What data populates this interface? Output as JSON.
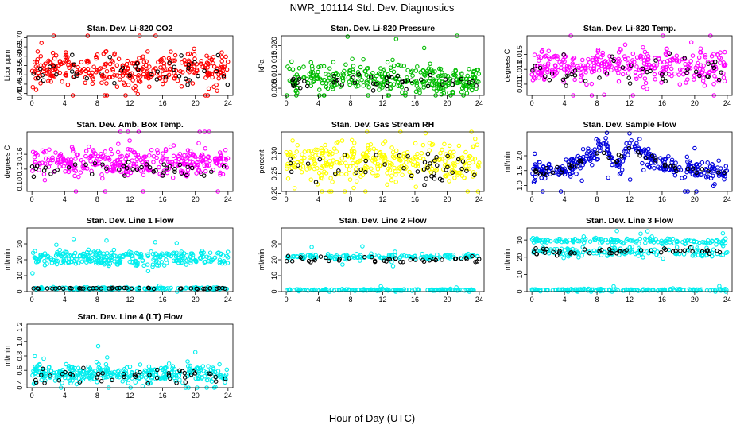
{
  "figure": {
    "title": "NWR_101114  Std. Dev. Diagnostics",
    "xlabel": "Hour of Day (UTC)"
  },
  "colors": {
    "black": "#000000"
  },
  "chart_data": [
    {
      "id": "co2",
      "type": "scatter",
      "title": "Stan. Dev. Li-820 CO2",
      "ylabel": "Licor ppm",
      "color": "#ff0000",
      "xlim": [
        -0.6,
        24.6
      ],
      "ylim": [
        0.39,
        0.71
      ],
      "xticks": [
        0,
        4,
        8,
        12,
        16,
        20,
        24
      ],
      "yticks": [
        "0.40",
        "0.45",
        "0.50",
        "0.55",
        "0.60",
        "0.65",
        "0.70"
      ],
      "profile": [
        [
          0,
          0.53
        ],
        [
          24,
          0.53
        ]
      ],
      "spread": 0.045,
      "black_profile": [
        [
          0,
          0.52
        ],
        [
          24,
          0.52
        ]
      ],
      "black_spread": 0.04
    },
    {
      "id": "pressure",
      "type": "scatter",
      "title": "Stan. Dev. Li-820 Pressure",
      "ylabel": "kPa",
      "color": "#00bb00",
      "xlim": [
        -0.6,
        24.6
      ],
      "ylim": [
        0.0025,
        0.0235
      ],
      "xticks": [
        0,
        4,
        8,
        12,
        16,
        20,
        24
      ],
      "yticks": [
        "0.005",
        "0.010",
        "0.015",
        "0.020"
      ],
      "profile": [
        [
          0,
          0.008
        ],
        [
          6,
          0.0095
        ],
        [
          12,
          0.0085
        ],
        [
          18,
          0.008
        ],
        [
          24,
          0.0075
        ]
      ],
      "spread": 0.0025,
      "black_profile": [
        [
          0,
          0.007
        ],
        [
          24,
          0.0075
        ]
      ],
      "black_spread": 0.0015
    },
    {
      "id": "temp",
      "type": "scatter",
      "title": "Stan. Dev. Li-820 Temp.",
      "ylabel": "degrees C",
      "color": "#ff00ff",
      "xlim": [
        -0.6,
        24.6
      ],
      "ylim": [
        0.0095,
        0.0175
      ],
      "xticks": [
        0,
        4,
        8,
        12,
        16,
        20,
        24
      ],
      "yticks": [
        "0.011",
        "0.013",
        "0.015"
      ],
      "profile": [
        [
          0,
          0.0135
        ],
        [
          24,
          0.0135
        ]
      ],
      "spread": 0.0012,
      "black_profile": [
        [
          0,
          0.013
        ],
        [
          24,
          0.013
        ]
      ],
      "black_spread": 0.001
    },
    {
      "id": "ambtemp",
      "type": "scatter",
      "title": "Stan. Dev. Amb. Box Temp.",
      "ylabel": "degrees C",
      "color": "#ff00ff",
      "xlim": [
        -0.6,
        24.6
      ],
      "ylim": [
        0.085,
        0.205
      ],
      "xticks": [
        0,
        4,
        8,
        12,
        16,
        20,
        24
      ],
      "yticks": [
        "0.10",
        "0.13",
        "0.16"
      ],
      "profile": [
        [
          0,
          0.145
        ],
        [
          24,
          0.145
        ]
      ],
      "spread": 0.015,
      "black_profile": [
        [
          0,
          0.13
        ],
        [
          24,
          0.13
        ]
      ],
      "black_spread": 0.008
    },
    {
      "id": "rh",
      "type": "scatter",
      "title": "Stan. Dev. Gas Stream RH",
      "ylabel": "percent",
      "color": "#ffff00",
      "xlim": [
        -0.6,
        24.6
      ],
      "ylim": [
        0.205,
        0.355
      ],
      "xticks": [
        0,
        4,
        8,
        12,
        16,
        20,
        24
      ],
      "yticks": [
        "0.20",
        "0.25",
        "0.30"
      ],
      "profile": [
        [
          0,
          0.28
        ],
        [
          24,
          0.28
        ]
      ],
      "spread": 0.025,
      "black_profile": [
        [
          0,
          0.27
        ],
        [
          24,
          0.27
        ]
      ],
      "black_spread": 0.02
    },
    {
      "id": "sampleflow",
      "type": "scatter",
      "title": "Stan. Dev. Sample Flow",
      "ylabel": "ml/min",
      "color": "#0000dd",
      "xlim": [
        -0.6,
        24.6
      ],
      "ylim": [
        0.8,
        2.8
      ],
      "xticks": [
        0,
        4,
        8,
        12,
        16,
        20,
        24
      ],
      "yticks": [
        "1.0",
        "1.5",
        "2.0"
      ],
      "profile": [
        [
          0,
          1.45
        ],
        [
          4,
          1.5
        ],
        [
          7,
          2.0
        ],
        [
          9,
          2.3
        ],
        [
          10,
          1.8
        ],
        [
          11,
          1.7
        ],
        [
          12,
          2.5
        ],
        [
          13,
          2.3
        ],
        [
          15,
          1.8
        ],
        [
          17,
          1.6
        ],
        [
          20,
          1.5
        ],
        [
          24,
          1.5
        ]
      ],
      "spread": 0.15,
      "black_profile": [
        [
          0,
          1.45
        ],
        [
          4,
          1.5
        ],
        [
          7,
          1.9
        ],
        [
          9,
          2.1
        ],
        [
          10,
          1.75
        ],
        [
          12,
          2.3
        ],
        [
          14,
          2.0
        ],
        [
          17,
          1.6
        ],
        [
          20,
          1.5
        ],
        [
          24,
          1.45
        ]
      ],
      "black_spread": 0.07
    },
    {
      "id": "line1",
      "type": "scatter",
      "title": "Stan. Dev. Line 1 Flow",
      "ylabel": "ml/min",
      "color": "#00eeee",
      "xlim": [
        -0.6,
        24.6
      ],
      "ylim": [
        0,
        40
      ],
      "xticks": [
        0,
        4,
        8,
        12,
        16,
        20,
        24
      ],
      "yticks": [
        "0",
        "10",
        "20",
        "30"
      ],
      "bands": [
        {
          "profile": [
            [
              0,
              19
            ],
            [
              24,
              19
            ]
          ],
          "spread": 1.2
        },
        {
          "profile": [
            [
              0,
              23
            ],
            [
              24,
              23
            ]
          ],
          "spread": 1.2
        },
        {
          "profile": [
            [
              0,
              2
            ],
            [
              24,
              2
            ]
          ],
          "spread": 0.4
        }
      ],
      "black_profile": [
        [
          0,
          2
        ],
        [
          24,
          2
        ]
      ],
      "black_spread": 0.2
    },
    {
      "id": "line2",
      "type": "scatter",
      "title": "Stan. Dev. Line 2 Flow",
      "ylabel": "ml/min",
      "color": "#00eeee",
      "xlim": [
        -0.6,
        24.6
      ],
      "ylim": [
        0,
        40
      ],
      "xticks": [
        0,
        4,
        8,
        12,
        16,
        20,
        24
      ],
      "yticks": [
        "0",
        "10",
        "20",
        "30"
      ],
      "bands": [
        {
          "profile": [
            [
              0,
              22
            ],
            [
              24,
              22
            ]
          ],
          "spread": 0.8
        },
        {
          "profile": [
            [
              0,
              1
            ],
            [
              24,
              1
            ]
          ],
          "spread": 0.3
        }
      ],
      "black_profile": [
        [
          0,
          20
        ],
        [
          24,
          20
        ]
      ],
      "black_spread": 1.0
    },
    {
      "id": "line3",
      "type": "scatter",
      "title": "Stan. Dev. Line 3 Flow",
      "ylabel": "ml/min",
      "color": "#00eeee",
      "xlim": [
        -0.6,
        24.6
      ],
      "ylim": [
        0,
        37
      ],
      "xticks": [
        0,
        4,
        8,
        12,
        16,
        20,
        24
      ],
      "yticks": [
        "0",
        "10",
        "20",
        "30"
      ],
      "bands": [
        {
          "profile": [
            [
              0,
              30
            ],
            [
              24,
              29
            ]
          ],
          "spread": 0.8
        },
        {
          "profile": [
            [
              0,
              23
            ],
            [
              24,
              23
            ]
          ],
          "spread": 1.5
        },
        {
          "profile": [
            [
              0,
              1
            ],
            [
              24,
              1
            ]
          ],
          "spread": 0.3
        }
      ],
      "black_profile": [
        [
          0,
          23
        ],
        [
          24,
          24
        ]
      ],
      "black_spread": 1.2
    },
    {
      "id": "line4",
      "type": "scatter",
      "title": "Stan. Dev. Line 4 (LT) Flow",
      "ylabel": "ml/min",
      "color": "#00eeee",
      "xlim": [
        -0.6,
        24.6
      ],
      "ylim": [
        0.36,
        1.24
      ],
      "xticks": [
        0,
        4,
        8,
        12,
        16,
        20,
        24
      ],
      "yticks": [
        "0.4",
        "0.6",
        "0.8",
        "1.0",
        "1.2"
      ],
      "profile": [
        [
          0,
          0.55
        ],
        [
          24,
          0.55
        ]
      ],
      "spread": 0.06,
      "black_profile": [
        [
          0,
          0.52
        ],
        [
          24,
          0.52
        ]
      ],
      "black_spread": 0.05
    }
  ]
}
